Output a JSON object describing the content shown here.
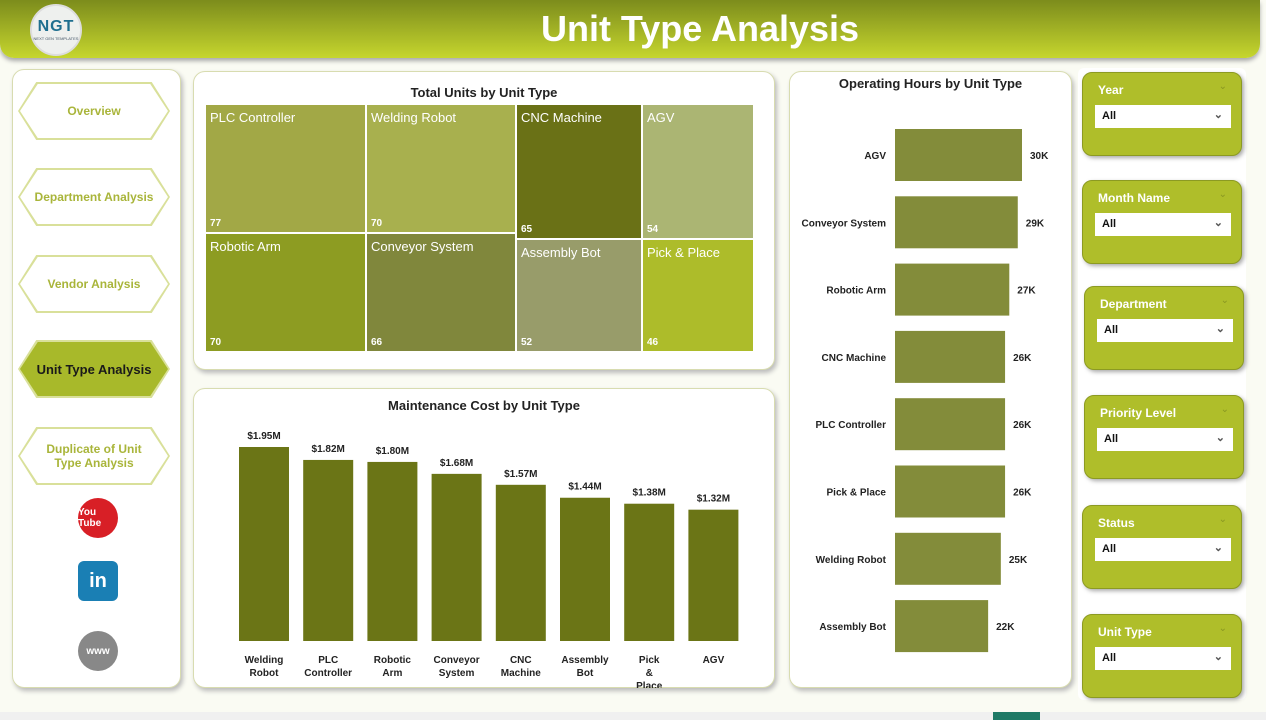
{
  "header": {
    "title": "Unit Type Analysis",
    "logo_text": "NGT",
    "logo_sub": "NEXT GEN TEMPLATES"
  },
  "nav": [
    {
      "label": "Overview"
    },
    {
      "label": "Department Analysis"
    },
    {
      "label": "Vendor Analysis"
    },
    {
      "label": "Unit Type Analysis",
      "active": true
    },
    {
      "label": "Duplicate of Unit Type Analysis"
    }
  ],
  "social": [
    {
      "icon": "youtube-icon",
      "label": "You Tube"
    },
    {
      "icon": "linkedin-icon",
      "label": "in"
    },
    {
      "icon": "globe-icon",
      "label": "www"
    }
  ],
  "treemap": {
    "title": "Total Units by Unit Type",
    "items": [
      {
        "name": "PLC Controller",
        "value": 77,
        "color": "#a2a846"
      },
      {
        "name": "Robotic Arm",
        "value": 70,
        "color": "#8d9c22"
      },
      {
        "name": "Welding Robot",
        "value": 70,
        "color": "#a8b04e"
      },
      {
        "name": "Conveyor System",
        "value": 66,
        "color": "#80873c"
      },
      {
        "name": "CNC Machine",
        "value": 65,
        "color": "#6a7116"
      },
      {
        "name": "Assembly Bot",
        "value": 52,
        "color": "#989c6a"
      },
      {
        "name": "AGV",
        "value": 54,
        "color": "#abb573"
      },
      {
        "name": "Pick & Place",
        "value": 46,
        "color": "#adbc2a"
      }
    ]
  },
  "chart_data": [
    {
      "type": "bar",
      "title": "Maintenance Cost by Unit Type",
      "categories": [
        "Welding Robot",
        "PLC Controller",
        "Robotic Arm",
        "Conveyor System",
        "CNC Machine",
        "Assembly Bot",
        "Pick & Place",
        "AGV"
      ],
      "values": [
        1.95,
        1.82,
        1.8,
        1.68,
        1.57,
        1.44,
        1.38,
        1.32
      ],
      "data_labels": [
        "$1.95M",
        "$1.82M",
        "$1.80M",
        "$1.68M",
        "$1.57M",
        "$1.44M",
        "$1.38M",
        "$1.32M"
      ],
      "unit": "$M",
      "color": "#6b7516"
    },
    {
      "type": "bar",
      "orientation": "horizontal",
      "title": "Operating Hours by Unit Type",
      "categories": [
        "AGV",
        "Conveyor System",
        "Robotic Arm",
        "CNC Machine",
        "PLC Controller",
        "Pick & Place",
        "Welding Robot",
        "Assembly Bot"
      ],
      "values": [
        30,
        29,
        27,
        26,
        26,
        26,
        25,
        22
      ],
      "data_labels": [
        "30K",
        "29K",
        "27K",
        "26K",
        "26K",
        "26K",
        "25K",
        "22K"
      ],
      "unit": "K hours",
      "color": "#838c3a"
    }
  ],
  "slicers": [
    {
      "title": "Year",
      "value": "All"
    },
    {
      "title": "Month Name",
      "value": "All"
    },
    {
      "title": "Department",
      "value": "All"
    },
    {
      "title": "Priority Level",
      "value": "All"
    },
    {
      "title": "Status",
      "value": "All"
    },
    {
      "title": "Unit Type",
      "value": "All"
    }
  ]
}
